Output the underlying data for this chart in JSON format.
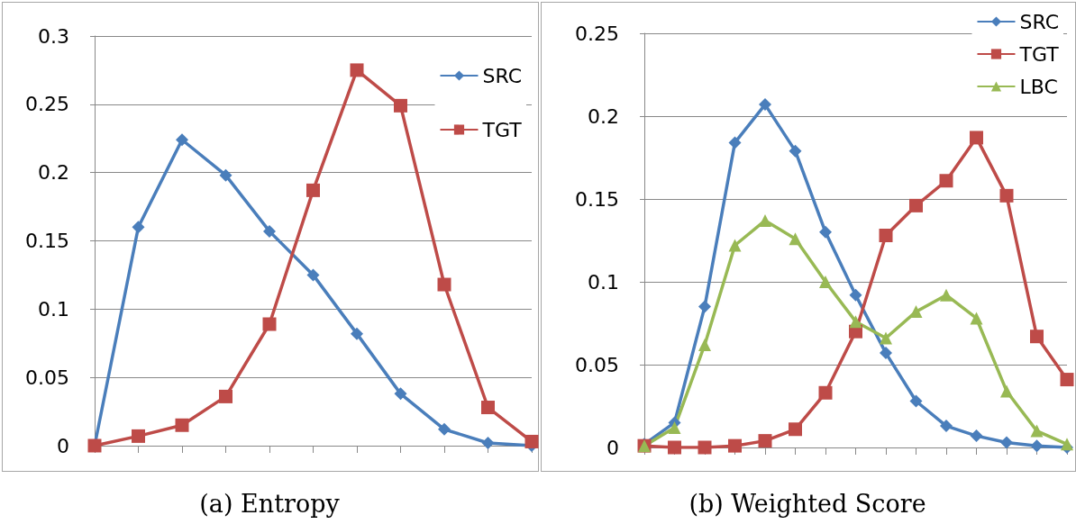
{
  "chart_data": [
    {
      "type": "line",
      "title": "(a) Entropy",
      "categories": [
        null,
        null,
        null,
        null,
        null,
        null,
        null,
        null,
        null,
        null,
        null
      ],
      "ylim": [
        0,
        0.3
      ],
      "yticks": [
        0,
        0.05,
        0.1,
        0.15,
        0.2,
        0.25,
        0.3
      ],
      "grid": "y",
      "legend": "top right",
      "series": [
        {
          "name": "SRC",
          "color": "#4a7ebb",
          "marker": "diamond",
          "values": [
            0,
            0.16,
            0.224,
            0.198,
            0.157,
            0.125,
            0.082,
            0.038,
            0.012,
            0.002,
            0
          ]
        },
        {
          "name": "TGT",
          "color": "#be4b48",
          "marker": "square",
          "values": [
            0,
            0.007,
            0.015,
            0.036,
            0.089,
            0.187,
            0.275,
            0.249,
            0.118,
            0.028,
            0.003
          ]
        }
      ]
    },
    {
      "type": "line",
      "title": "(b) Weighted Score",
      "categories": [
        null,
        null,
        null,
        null,
        null,
        null,
        null,
        null,
        null,
        null,
        null,
        null,
        null,
        null,
        null
      ],
      "ylim": [
        0,
        0.25
      ],
      "yticks": [
        0,
        0.05,
        0.1,
        0.15,
        0.2,
        0.25
      ],
      "grid": "y",
      "legend": "top right",
      "series": [
        {
          "name": "SRC",
          "color": "#4a7ebb",
          "marker": "diamond",
          "values": [
            0.002,
            0.015,
            0.085,
            0.184,
            0.207,
            0.179,
            0.13,
            0.092,
            0.057,
            0.028,
            0.013,
            0.007,
            0.003,
            0.001,
            0
          ]
        },
        {
          "name": "TGT",
          "color": "#be4b48",
          "marker": "square",
          "values": [
            0.001,
            0,
            0,
            0.001,
            0.004,
            0.011,
            0.033,
            0.07,
            0.128,
            0.146,
            0.161,
            0.187,
            0.152,
            0.067,
            0.041
          ]
        },
        {
          "name": "LBC",
          "color": "#98b954",
          "marker": "triangle",
          "values": [
            0.001,
            0.012,
            0.062,
            0.122,
            0.137,
            0.126,
            0.1,
            0.076,
            0.066,
            0.082,
            0.092,
            0.078,
            0.034,
            0.01,
            0.002
          ]
        }
      ]
    }
  ]
}
